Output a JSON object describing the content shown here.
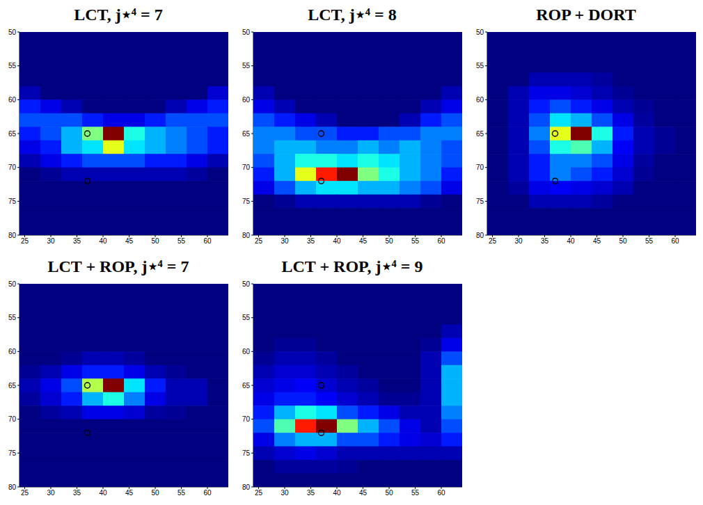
{
  "chart_data": [
    {
      "type": "heatmap",
      "title": "LCT, j⋆⁴ = 7",
      "x": [
        26,
        30,
        34,
        38,
        42,
        46,
        50,
        54,
        58,
        62
      ],
      "y": [
        51,
        53,
        55,
        57,
        59,
        61,
        63,
        65,
        67,
        69,
        71,
        73,
        75,
        77,
        79
      ],
      "z": [
        [
          0,
          0,
          0,
          0,
          0,
          0,
          0,
          0,
          0,
          0
        ],
        [
          0,
          0,
          0,
          0,
          0,
          0,
          0,
          0,
          0,
          0
        ],
        [
          0,
          0,
          0,
          0,
          0,
          0,
          0,
          0,
          0,
          0
        ],
        [
          0,
          0,
          0,
          0,
          0,
          0,
          0,
          0,
          0,
          0
        ],
        [
          0.05,
          0,
          0,
          0,
          0,
          0,
          0,
          0,
          0,
          0.08
        ],
        [
          0.15,
          0.1,
          0.05,
          0,
          0,
          0,
          0,
          0.05,
          0.1,
          0.15
        ],
        [
          0.2,
          0.2,
          0.2,
          0.15,
          0.1,
          0.1,
          0.15,
          0.2,
          0.2,
          0.2
        ],
        [
          0.15,
          0.2,
          0.3,
          0.5,
          1.0,
          0.4,
          0.3,
          0.25,
          0.2,
          0.15
        ],
        [
          0.1,
          0.15,
          0.3,
          0.35,
          0.6,
          0.35,
          0.3,
          0.25,
          0.2,
          0.15
        ],
        [
          0.05,
          0.1,
          0.15,
          0.2,
          0.2,
          0.2,
          0.15,
          0.15,
          0.1,
          0.05
        ],
        [
          0,
          0.02,
          0.05,
          0.05,
          0.05,
          0.05,
          0.05,
          0.05,
          0.03,
          0
        ],
        [
          0,
          0,
          0,
          0,
          0,
          0,
          0,
          0,
          0,
          0
        ],
        [
          0,
          0,
          0,
          0,
          0,
          0,
          0,
          0,
          0,
          0
        ],
        [
          0,
          0,
          0,
          0,
          0,
          0,
          0,
          0,
          0,
          0
        ],
        [
          0,
          0,
          0,
          0,
          0,
          0,
          0,
          0,
          0,
          0
        ]
      ],
      "zlim": [
        0,
        1
      ],
      "markers": {
        "x": [
          37,
          37
        ],
        "y": [
          65,
          72
        ]
      },
      "marker": "circle",
      "xlim": [
        24,
        64
      ],
      "ylim": [
        50,
        80
      ],
      "xticks": [
        25,
        30,
        35,
        40,
        45,
        50,
        55,
        60
      ],
      "yticks": [
        50,
        55,
        60,
        65,
        70,
        75,
        80
      ]
    },
    {
      "type": "heatmap",
      "title": "LCT, j⋆⁴ = 8",
      "x": [
        26,
        30,
        34,
        38,
        42,
        46,
        50,
        54,
        58,
        62
      ],
      "y": [
        51,
        53,
        55,
        57,
        59,
        61,
        63,
        65,
        67,
        69,
        71,
        73,
        75,
        77,
        79
      ],
      "z": [
        [
          0,
          0,
          0,
          0,
          0,
          0,
          0,
          0,
          0,
          0
        ],
        [
          0,
          0,
          0,
          0,
          0,
          0,
          0,
          0,
          0,
          0
        ],
        [
          0,
          0,
          0,
          0,
          0,
          0,
          0,
          0,
          0,
          0
        ],
        [
          0,
          0,
          0,
          0,
          0,
          0,
          0,
          0,
          0,
          0
        ],
        [
          0.05,
          0,
          0,
          0,
          0,
          0,
          0,
          0,
          0,
          0.05
        ],
        [
          0.1,
          0.05,
          0,
          0,
          0,
          0,
          0,
          0,
          0.05,
          0.1
        ],
        [
          0.2,
          0.15,
          0.1,
          0.05,
          0,
          0,
          0,
          0.05,
          0.15,
          0.2
        ],
        [
          0.25,
          0.25,
          0.2,
          0.2,
          0.15,
          0.15,
          0.2,
          0.2,
          0.25,
          0.25
        ],
        [
          0.25,
          0.3,
          0.3,
          0.25,
          0.25,
          0.3,
          0.25,
          0.3,
          0.25,
          0.2
        ],
        [
          0.2,
          0.3,
          0.4,
          0.4,
          0.35,
          0.4,
          0.35,
          0.3,
          0.25,
          0.2
        ],
        [
          0.15,
          0.3,
          0.6,
          0.85,
          1.0,
          0.5,
          0.4,
          0.3,
          0.25,
          0.15
        ],
        [
          0.1,
          0.2,
          0.3,
          0.35,
          0.35,
          0.3,
          0.3,
          0.25,
          0.2,
          0.1
        ],
        [
          0,
          0.02,
          0.05,
          0.05,
          0.05,
          0.05,
          0.05,
          0.05,
          0.02,
          0
        ],
        [
          0,
          0,
          0,
          0,
          0,
          0,
          0,
          0,
          0,
          0
        ],
        [
          0,
          0,
          0,
          0,
          0,
          0,
          0,
          0,
          0,
          0
        ]
      ],
      "zlim": [
        0,
        1
      ],
      "markers": {
        "x": [
          37,
          37
        ],
        "y": [
          65,
          72
        ]
      },
      "marker": "circle",
      "xlim": [
        24,
        64
      ],
      "ylim": [
        50,
        80
      ],
      "xticks": [
        25,
        30,
        35,
        40,
        45,
        50,
        55,
        60
      ],
      "yticks": [
        50,
        55,
        60,
        65,
        70,
        75,
        80
      ]
    },
    {
      "type": "heatmap",
      "title": "ROP + DORT",
      "x": [
        26,
        30,
        34,
        38,
        42,
        46,
        50,
        54,
        58,
        62
      ],
      "y": [
        51,
        53,
        55,
        57,
        59,
        61,
        63,
        65,
        67,
        69,
        71,
        73,
        75,
        77,
        79
      ],
      "z": [
        [
          0,
          0,
          0,
          0,
          0,
          0,
          0,
          0,
          0,
          0
        ],
        [
          0,
          0,
          0,
          0,
          0,
          0,
          0,
          0,
          0,
          0
        ],
        [
          0,
          0,
          0,
          0,
          0,
          0,
          0,
          0,
          0,
          0
        ],
        [
          0,
          0,
          0.05,
          0.05,
          0.05,
          0.03,
          0,
          0,
          0,
          0
        ],
        [
          0,
          0.05,
          0.1,
          0.1,
          0.08,
          0.05,
          0.02,
          0,
          0,
          0
        ],
        [
          0,
          0.05,
          0.15,
          0.2,
          0.15,
          0.1,
          0.05,
          0.02,
          0,
          0
        ],
        [
          0,
          0.05,
          0.2,
          0.35,
          0.3,
          0.2,
          0.1,
          0.03,
          0,
          0
        ],
        [
          0,
          0.05,
          0.25,
          0.6,
          1.0,
          0.4,
          0.15,
          0.05,
          0.02,
          0
        ],
        [
          0,
          0.05,
          0.2,
          0.4,
          0.45,
          0.3,
          0.12,
          0.05,
          0.02,
          0
        ],
        [
          0,
          0.05,
          0.15,
          0.25,
          0.25,
          0.2,
          0.1,
          0.03,
          0,
          0
        ],
        [
          0,
          0.05,
          0.15,
          0.25,
          0.2,
          0.15,
          0.08,
          0.02,
          0,
          0
        ],
        [
          0,
          0.03,
          0.1,
          0.12,
          0.1,
          0.08,
          0.05,
          0,
          0,
          0
        ],
        [
          0,
          0,
          0.05,
          0.05,
          0.05,
          0.03,
          0,
          0,
          0,
          0
        ],
        [
          0,
          0,
          0,
          0,
          0,
          0,
          0,
          0,
          0,
          0
        ],
        [
          0,
          0,
          0,
          0,
          0,
          0,
          0,
          0,
          0,
          0
        ]
      ],
      "zlim": [
        0,
        1
      ],
      "markers": {
        "x": [
          37,
          37
        ],
        "y": [
          65,
          72
        ]
      },
      "marker": "circle",
      "xlim": [
        24,
        64
      ],
      "ylim": [
        50,
        80
      ],
      "xticks": [
        25,
        30,
        35,
        40,
        45,
        50,
        55,
        60
      ],
      "yticks": [
        50,
        55,
        60,
        65,
        70,
        75,
        80
      ]
    },
    {
      "type": "heatmap",
      "title": "LCT + ROP, j⋆⁴ = 7",
      "x": [
        26,
        30,
        34,
        38,
        42,
        46,
        50,
        54,
        58,
        62
      ],
      "y": [
        51,
        53,
        55,
        57,
        59,
        61,
        63,
        65,
        67,
        69,
        71,
        73,
        75,
        77,
        79
      ],
      "z": [
        [
          0,
          0,
          0,
          0,
          0,
          0,
          0,
          0,
          0,
          0
        ],
        [
          0,
          0,
          0,
          0,
          0,
          0,
          0,
          0,
          0,
          0
        ],
        [
          0,
          0,
          0,
          0,
          0,
          0,
          0,
          0,
          0,
          0
        ],
        [
          0,
          0,
          0,
          0,
          0,
          0,
          0,
          0,
          0,
          0
        ],
        [
          0,
          0,
          0,
          0,
          0,
          0,
          0,
          0,
          0,
          0
        ],
        [
          0,
          0,
          0.02,
          0.05,
          0.05,
          0.03,
          0,
          0,
          0,
          0
        ],
        [
          0.02,
          0.05,
          0.1,
          0.15,
          0.15,
          0.1,
          0.05,
          0.02,
          0,
          0
        ],
        [
          0.05,
          0.1,
          0.2,
          0.55,
          1.0,
          0.35,
          0.15,
          0.05,
          0.05,
          0
        ],
        [
          0.03,
          0.08,
          0.15,
          0.3,
          0.4,
          0.25,
          0.1,
          0.05,
          0.05,
          0
        ],
        [
          0,
          0.03,
          0.05,
          0.1,
          0.1,
          0.08,
          0.03,
          0.02,
          0,
          0
        ],
        [
          0,
          0,
          0,
          0,
          0,
          0,
          0,
          0,
          0,
          0
        ],
        [
          0,
          0,
          0,
          0,
          0,
          0,
          0,
          0,
          0,
          0
        ],
        [
          0,
          0,
          0,
          0,
          0,
          0,
          0,
          0,
          0,
          0
        ],
        [
          0,
          0,
          0,
          0,
          0,
          0,
          0,
          0,
          0,
          0
        ],
        [
          0,
          0,
          0,
          0,
          0,
          0,
          0,
          0,
          0,
          0
        ]
      ],
      "zlim": [
        0,
        1
      ],
      "markers": {
        "x": [
          37,
          37
        ],
        "y": [
          65,
          72
        ]
      },
      "marker": "circle",
      "xlim": [
        24,
        64
      ],
      "ylim": [
        50,
        80
      ],
      "xticks": [
        25,
        30,
        35,
        40,
        45,
        50,
        55,
        60
      ],
      "yticks": [
        50,
        55,
        60,
        65,
        70,
        75,
        80
      ]
    },
    {
      "type": "heatmap",
      "title": "LCT + ROP, j⋆⁴ = 9",
      "x": [
        26,
        30,
        34,
        38,
        42,
        46,
        50,
        54,
        58,
        62
      ],
      "y": [
        51,
        53,
        55,
        57,
        59,
        61,
        63,
        65,
        67,
        69,
        71,
        73,
        75,
        77,
        79
      ],
      "z": [
        [
          0,
          0,
          0,
          0,
          0,
          0,
          0,
          0,
          0,
          0
        ],
        [
          0,
          0,
          0,
          0,
          0,
          0,
          0,
          0,
          0,
          0
        ],
        [
          0,
          0,
          0,
          0,
          0,
          0,
          0,
          0,
          0,
          0
        ],
        [
          0,
          0,
          0,
          0,
          0,
          0,
          0,
          0,
          0,
          0.05
        ],
        [
          0,
          0.02,
          0.02,
          0,
          0,
          0,
          0,
          0,
          0.02,
          0.1
        ],
        [
          0.02,
          0.05,
          0.05,
          0.03,
          0,
          0,
          0,
          0,
          0.05,
          0.2
        ],
        [
          0.05,
          0.08,
          0.08,
          0.05,
          0.03,
          0,
          0,
          0,
          0.05,
          0.3
        ],
        [
          0.08,
          0.1,
          0.12,
          0.08,
          0.05,
          0.03,
          0,
          0,
          0.05,
          0.3
        ],
        [
          0.1,
          0.15,
          0.15,
          0.12,
          0.08,
          0.05,
          0.02,
          0.02,
          0.05,
          0.3
        ],
        [
          0.15,
          0.3,
          0.4,
          0.35,
          0.2,
          0.15,
          0.1,
          0.05,
          0.05,
          0.25
        ],
        [
          0.2,
          0.45,
          0.85,
          1.0,
          0.5,
          0.3,
          0.2,
          0.1,
          0.05,
          0.2
        ],
        [
          0.1,
          0.25,
          0.3,
          0.3,
          0.2,
          0.2,
          0.15,
          0.1,
          0.08,
          0.15
        ],
        [
          0.05,
          0.08,
          0.1,
          0.08,
          0.05,
          0.05,
          0.05,
          0.05,
          0.05,
          0.05
        ],
        [
          0,
          0.03,
          0.03,
          0.03,
          0.02,
          0,
          0,
          0,
          0,
          0
        ],
        [
          0,
          0,
          0,
          0,
          0,
          0,
          0,
          0,
          0,
          0
        ]
      ],
      "zlim": [
        0,
        1
      ],
      "markers": {
        "x": [
          37,
          37
        ],
        "y": [
          65,
          72
        ]
      },
      "marker": "circle",
      "xlim": [
        24,
        64
      ],
      "ylim": [
        50,
        80
      ],
      "xticks": [
        25,
        30,
        35,
        40,
        45,
        50,
        55,
        60
      ],
      "yticks": [
        50,
        55,
        60,
        65,
        70,
        75,
        80
      ]
    }
  ]
}
